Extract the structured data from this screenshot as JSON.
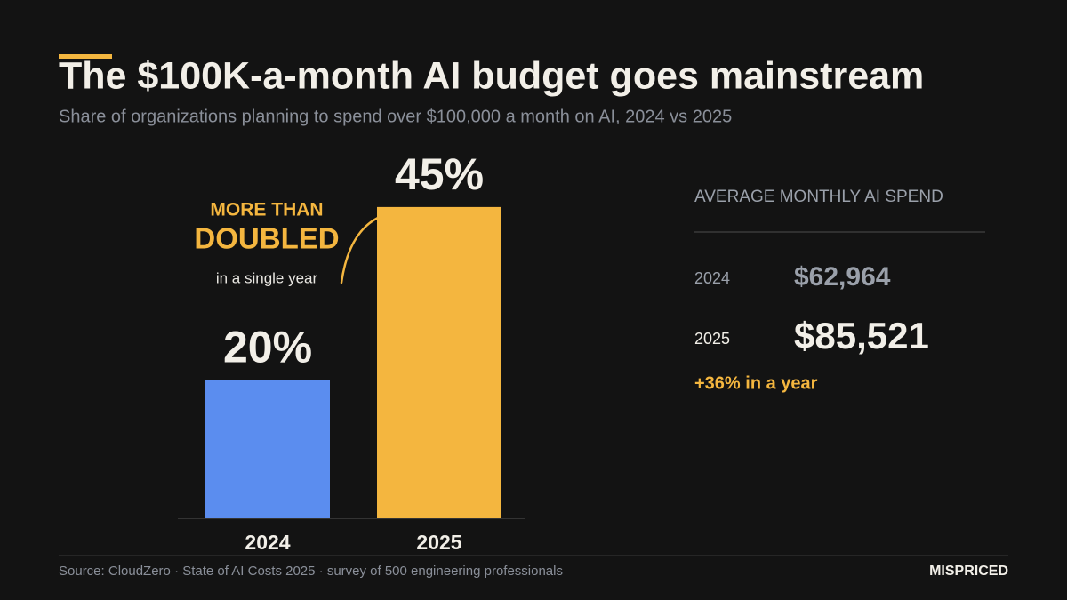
{
  "title": "The $100K-a-month AI budget goes mainstream",
  "subtitle": "Share of organizations planning to spend over $100,000 a month on AI, 2024 vs 2025",
  "chart_data": {
    "type": "bar",
    "categories": [
      "2024",
      "2025"
    ],
    "values": [
      20,
      45
    ],
    "value_labels": [
      "20%",
      "45%"
    ],
    "colors": [
      "#5b8def",
      "#f4b63f"
    ],
    "annotation": {
      "line1": "MORE THAN",
      "line2": "DOUBLED",
      "line3": "in a single year"
    }
  },
  "side_panel": {
    "heading": "AVERAGE MONTHLY AI SPEND",
    "rows": [
      {
        "year": "2024",
        "value": "$62,964"
      },
      {
        "year": "2025",
        "value": "$85,521"
      }
    ],
    "change": "+36% in a year"
  },
  "footer": {
    "source": "Source: CloudZero · State of AI Costs 2025 · survey of 500 engineering professionals",
    "brand": "MISPRICED"
  }
}
